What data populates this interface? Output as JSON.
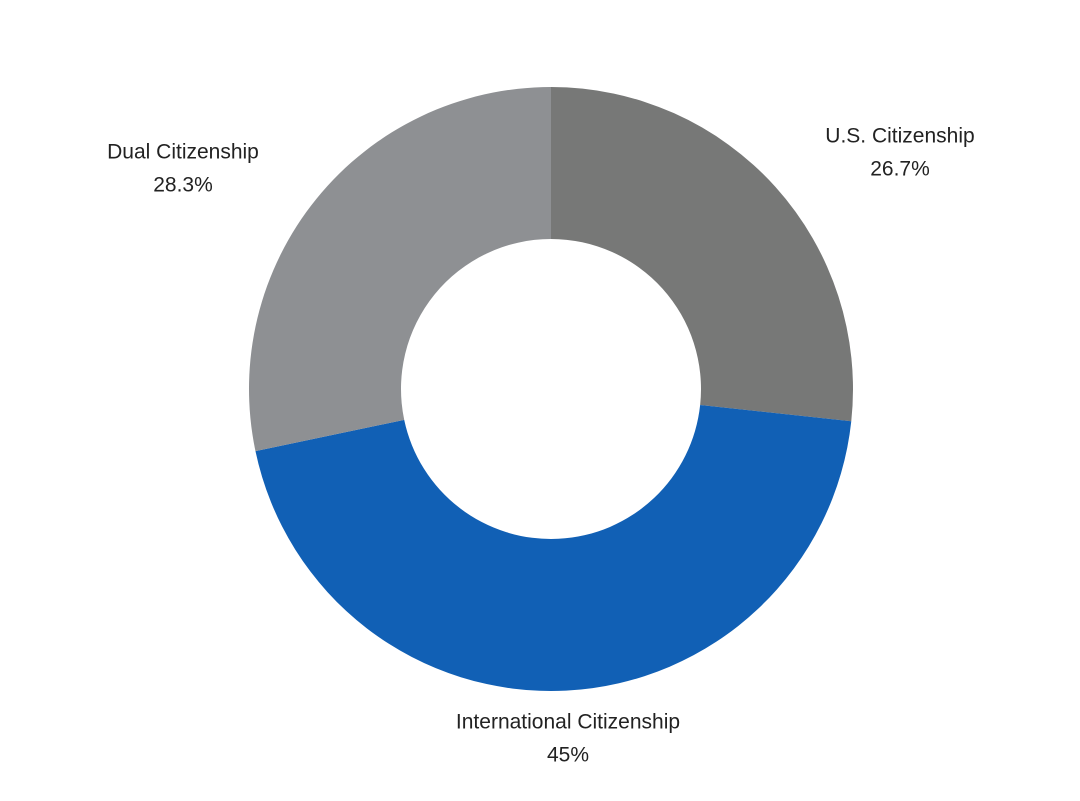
{
  "chart_data": {
    "type": "donut",
    "categories": [
      "U.S. Citizenship",
      "International Citizenship",
      "Dual Citizenship"
    ],
    "values": [
      26.7,
      45,
      28.3
    ],
    "value_labels": [
      "26.7%",
      "45%",
      "28.3%"
    ],
    "colors": [
      "#777877",
      "#1160b5",
      "#8e9093"
    ]
  }
}
